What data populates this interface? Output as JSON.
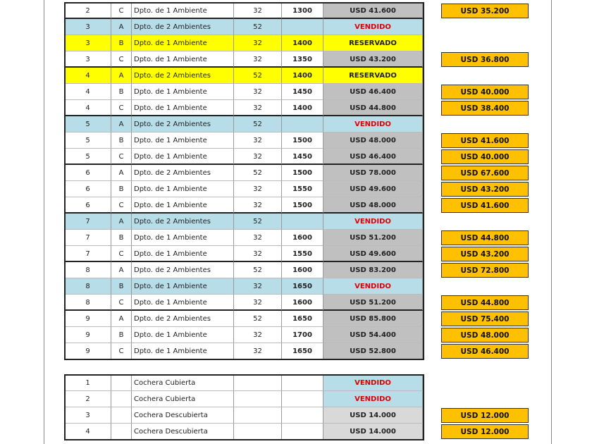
{
  "units": [
    {
      "floor": "2",
      "unit": "C",
      "type": "Dpto. de 1 Ambiente",
      "area": "32",
      "price_m2": "1300",
      "price": "USD 41.600",
      "price_fill": "#c0c0c0",
      "discount": "USD 35.200"
    },
    {
      "floor": "3",
      "unit": "A",
      "type": "Dpto. de 2 Ambientes",
      "area": "52",
      "price": "VENDIDO",
      "fill": "#b7dde8",
      "price_color": "#e00000"
    },
    {
      "floor": "3",
      "unit": "B",
      "type": "Dpto. de 1 Ambiente",
      "area": "32",
      "price_m2": "1400",
      "price": "RESERVADO",
      "fill": "#ffff00"
    },
    {
      "floor": "3",
      "unit": "C",
      "type": "Dpto. de 1 Ambiente",
      "area": "32",
      "price_m2": "1350",
      "price": "USD 43.200",
      "price_fill": "#c0c0c0",
      "discount": "USD 36.800"
    },
    {
      "floor": "4",
      "unit": "A",
      "type": "Dpto. de 2 Ambientes",
      "area": "52",
      "price_m2": "1400",
      "price": "RESERVADO",
      "fill": "#ffff00"
    },
    {
      "floor": "4",
      "unit": "B",
      "type": "Dpto. de 1 Ambiente",
      "area": "32",
      "price_m2": "1450",
      "price": "USD 46.400",
      "price_fill": "#c0c0c0",
      "discount": "USD 40.000"
    },
    {
      "floor": "4",
      "unit": "C",
      "type": "Dpto. de 1 Ambiente",
      "area": "32",
      "price_m2": "1400",
      "price": "USD 44.800",
      "price_fill": "#c0c0c0",
      "discount": "USD 38.400"
    },
    {
      "floor": "5",
      "unit": "A",
      "type": "Dpto. de 2 Ambientes",
      "area": "52",
      "price": "VENDIDO",
      "fill": "#b7dde8",
      "price_color": "#e00000"
    },
    {
      "floor": "5",
      "unit": "B",
      "type": "Dpto. de 1 Ambiente",
      "area": "32",
      "price_m2": "1500",
      "price": "USD 48.000",
      "price_fill": "#c0c0c0",
      "discount": "USD 41.600"
    },
    {
      "floor": "5",
      "unit": "C",
      "type": "Dpto. de 1 Ambiente",
      "area": "32",
      "price_m2": "1450",
      "price": "USD 46.400",
      "price_fill": "#c0c0c0",
      "discount": "USD 40.000"
    },
    {
      "floor": "6",
      "unit": "A",
      "type": "Dpto. de 2 Ambientes",
      "area": "52",
      "price_m2": "1500",
      "price": "USD 78.000",
      "price_fill": "#c0c0c0",
      "discount": "USD 67.600"
    },
    {
      "floor": "6",
      "unit": "B",
      "type": "Dpto. de 1 Ambiente",
      "area": "32",
      "price_m2": "1550",
      "price": "USD 49.600",
      "price_fill": "#c0c0c0",
      "discount": "USD 43.200"
    },
    {
      "floor": "6",
      "unit": "C",
      "type": "Dpto. de 1 Ambiente",
      "area": "32",
      "price_m2": "1500",
      "price": "USD 48.000",
      "price_fill": "#c0c0c0",
      "discount": "USD 41.600"
    },
    {
      "floor": "7",
      "unit": "A",
      "type": "Dpto. de 2 Ambientes",
      "area": "52",
      "price": "VENDIDO",
      "fill": "#b7dde8",
      "price_color": "#e00000"
    },
    {
      "floor": "7",
      "unit": "B",
      "type": "Dpto. de 1 Ambiente",
      "area": "32",
      "price_m2": "1600",
      "price": "USD 51.200",
      "price_fill": "#c0c0c0",
      "discount": "USD 44.800"
    },
    {
      "floor": "7",
      "unit": "C",
      "type": "Dpto. de 1 Ambiente",
      "area": "32",
      "price_m2": "1550",
      "price": "USD 49.600",
      "price_fill": "#c0c0c0",
      "discount": "USD 43.200"
    },
    {
      "floor": "8",
      "unit": "A",
      "type": "Dpto. de 2 Ambientes",
      "area": "52",
      "price_m2": "1600",
      "price": "USD 83.200",
      "price_fill": "#c0c0c0",
      "discount": "USD 72.800"
    },
    {
      "floor": "8",
      "unit": "B",
      "type": "Dpto. de 1 Ambiente",
      "area": "32",
      "price_m2": "1650",
      "price": "VENDIDO",
      "fill": "#b7dde8",
      "price_color": "#e00000"
    },
    {
      "floor": "8",
      "unit": "C",
      "type": "Dpto. de 1 Ambiente",
      "area": "32",
      "price_m2": "1600",
      "price": "USD 51.200",
      "price_fill": "#c0c0c0",
      "discount": "USD 44.800"
    },
    {
      "floor": "9",
      "unit": "A",
      "type": "Dpto. de 2 Ambientes",
      "area": "52",
      "price_m2": "1650",
      "price": "USD 85.800",
      "price_fill": "#c0c0c0",
      "discount": "USD 75.400"
    },
    {
      "floor": "9",
      "unit": "B",
      "type": "Dpto. de 1 Ambiente",
      "area": "32",
      "price_m2": "1700",
      "price": "USD 54.400",
      "price_fill": "#c0c0c0",
      "discount": "USD 48.000"
    },
    {
      "floor": "9",
      "unit": "C",
      "type": "Dpto. de 1 Ambiente",
      "area": "32",
      "price_m2": "1650",
      "price": "USD 52.800",
      "price_fill": "#c0c0c0",
      "discount": "USD 46.400"
    }
  ],
  "garages": [
    {
      "floor": "1",
      "type": "Cochera Cubierta",
      "price": "VENDIDO",
      "price_fill": "#b7dde8",
      "price_color": "#e00000"
    },
    {
      "floor": "2",
      "type": "Cochera Cubierta",
      "price": "VENDIDO",
      "price_fill": "#b7dde8",
      "price_color": "#e00000"
    },
    {
      "floor": "3",
      "type": "Cochera Descubierta",
      "price": "USD 14.000",
      "price_fill": "#d9d9d9",
      "discount": "USD 12.000"
    },
    {
      "floor": "4",
      "type": "Cochera Descubierta",
      "price": "USD 14.000",
      "price_fill": "#d9d9d9",
      "discount": "USD 12.000"
    }
  ]
}
